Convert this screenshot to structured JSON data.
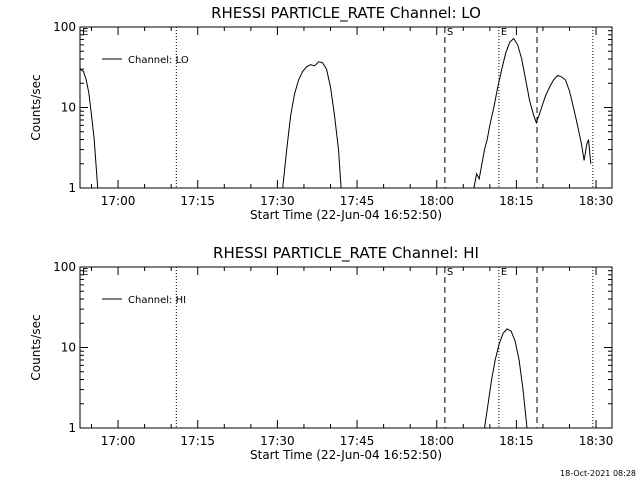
{
  "chart_data": [
    {
      "type": "line",
      "title": "RHESSI PARTICLE_RATE Channel: LO",
      "xlabel": "Start Time (22-Jun-04 16:52:50)",
      "ylabel": "Counts/sec",
      "yscale": "log",
      "ylim": [
        1,
        100
      ],
      "yticks": [
        {
          "v": 1,
          "label": "1"
        },
        {
          "v": 10,
          "label": "10"
        },
        {
          "v": 100,
          "label": "100"
        }
      ],
      "xlim": [
        "16:52:50",
        "18:33:00"
      ],
      "xticks": [
        "17:00",
        "17:15",
        "17:30",
        "17:45",
        "18:00",
        "18:15",
        "18:30"
      ],
      "legend": {
        "position": "top-left",
        "entries": [
          "Channel: LO"
        ]
      },
      "markers": [
        {
          "x": "16:52:50",
          "style": "dotted",
          "label": "E"
        },
        {
          "x": "17:10:58",
          "style": "dotted",
          "label": ""
        },
        {
          "x": "18:01:32",
          "style": "dashed",
          "label": "S"
        },
        {
          "x": "18:11:42",
          "style": "dotted",
          "label": "E"
        },
        {
          "x": "18:18:53",
          "style": "dashed",
          "label": ""
        },
        {
          "x": "18:29:24",
          "style": "dotted",
          "label": ""
        }
      ],
      "series": [
        {
          "name": "Channel: LO",
          "segments": [
            [
              [
                "16:52:50",
                30
              ],
              [
                "16:53:30",
                28
              ],
              [
                "16:54:00",
                22
              ],
              [
                "16:54:30",
                15
              ],
              [
                "16:55:00",
                8
              ],
              [
                "16:55:30",
                4
              ],
              [
                "16:56:10",
                1
              ]
            ],
            [
              [
                "17:31:00",
                1
              ],
              [
                "17:31:45",
                3
              ],
              [
                "17:32:30",
                8
              ],
              [
                "17:33:15",
                15
              ],
              [
                "17:34:00",
                22
              ],
              [
                "17:34:45",
                28
              ],
              [
                "17:35:30",
                32
              ],
              [
                "17:36:15",
                34
              ],
              [
                "17:37:00",
                33
              ],
              [
                "17:37:45",
                37
              ],
              [
                "17:38:30",
                36
              ],
              [
                "17:39:15",
                30
              ],
              [
                "17:40:00",
                18
              ],
              [
                "17:40:45",
                8
              ],
              [
                "17:41:30",
                3
              ],
              [
                "17:42:00",
                1
              ]
            ],
            [
              [
                "18:07:00",
                1
              ],
              [
                "18:07:30",
                1.5
              ],
              [
                "18:08:00",
                1.3
              ],
              [
                "18:08:30",
                2
              ],
              [
                "18:09:00",
                3
              ],
              [
                "18:09:30",
                4
              ],
              [
                "18:10:00",
                6
              ],
              [
                "18:10:45",
                10
              ],
              [
                "18:11:30",
                18
              ],
              [
                "18:12:15",
                30
              ],
              [
                "18:13:00",
                48
              ],
              [
                "18:13:45",
                65
              ],
              [
                "18:14:30",
                72
              ],
              [
                "18:15:15",
                60
              ],
              [
                "18:16:00",
                40
              ],
              [
                "18:16:45",
                22
              ],
              [
                "18:17:30",
                12
              ],
              [
                "18:18:15",
                8
              ],
              [
                "18:18:45",
                6.5
              ],
              [
                "18:19:15",
                8
              ],
              [
                "18:19:45",
                10
              ],
              [
                "18:20:30",
                14
              ],
              [
                "18:21:15",
                18
              ],
              [
                "18:22:00",
                22
              ],
              [
                "18:22:45",
                25
              ],
              [
                "18:23:30",
                24
              ],
              [
                "18:24:15",
                22
              ],
              [
                "18:25:00",
                16
              ],
              [
                "18:25:45",
                10
              ],
              [
                "18:26:30",
                6
              ],
              [
                "18:27:15",
                3.5
              ],
              [
                "18:27:45",
                2.2
              ],
              [
                "18:28:15",
                3.5
              ],
              [
                "18:28:35",
                4
              ],
              [
                "18:29:00",
                2
              ]
            ]
          ]
        }
      ]
    },
    {
      "type": "line",
      "title": "RHESSI PARTICLE_RATE Channel: HI",
      "xlabel": "Start Time (22-Jun-04 16:52:50)",
      "ylabel": "Counts/sec",
      "yscale": "log",
      "ylim": [
        1,
        100
      ],
      "yticks": [
        {
          "v": 1,
          "label": "1"
        },
        {
          "v": 10,
          "label": "10"
        },
        {
          "v": 100,
          "label": "100"
        }
      ],
      "xlim": [
        "16:52:50",
        "18:33:00"
      ],
      "xticks": [
        "17:00",
        "17:15",
        "17:30",
        "17:45",
        "18:00",
        "18:15",
        "18:30"
      ],
      "legend": {
        "position": "top-left",
        "entries": [
          "Channel: HI"
        ]
      },
      "markers": [
        {
          "x": "16:52:50",
          "style": "dotted",
          "label": "E"
        },
        {
          "x": "17:10:58",
          "style": "dotted",
          "label": ""
        },
        {
          "x": "18:01:32",
          "style": "dashed",
          "label": "S"
        },
        {
          "x": "18:11:42",
          "style": "dotted",
          "label": "E"
        },
        {
          "x": "18:18:53",
          "style": "dashed",
          "label": ""
        },
        {
          "x": "18:29:24",
          "style": "dotted",
          "label": ""
        }
      ],
      "series": [
        {
          "name": "Channel: HI",
          "segments": [
            [
              [
                "18:09:00",
                1
              ],
              [
                "18:09:40",
                2
              ],
              [
                "18:10:20",
                4
              ],
              [
                "18:11:00",
                7
              ],
              [
                "18:11:45",
                11
              ],
              [
                "18:12:30",
                15
              ],
              [
                "18:13:15",
                17
              ],
              [
                "18:14:00",
                16
              ],
              [
                "18:14:45",
                12
              ],
              [
                "18:15:30",
                7
              ],
              [
                "18:16:15",
                3
              ],
              [
                "18:17:00",
                1
              ]
            ]
          ]
        }
      ]
    }
  ],
  "footer": {
    "timestamp": "18-Oct-2021 08:28"
  }
}
